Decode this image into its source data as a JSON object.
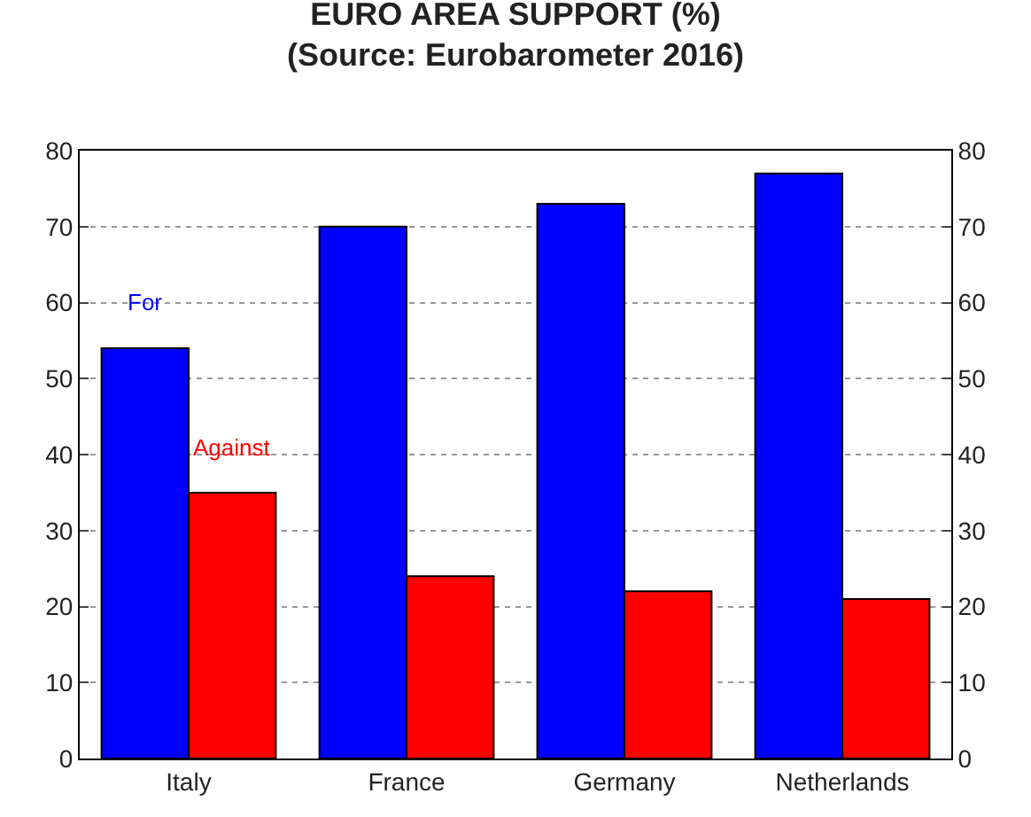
{
  "chart_data": {
    "type": "bar",
    "title": "EURO AREA SUPPORT (%)",
    "subtitle": "(Source: Eurobarometer 2016)",
    "categories": [
      "Italy",
      "France",
      "Germany",
      "Netherlands"
    ],
    "series": [
      {
        "name": "For",
        "color": "#0000ff",
        "values": [
          54,
          70,
          73,
          77
        ]
      },
      {
        "name": "Against",
        "color": "#ff0000",
        "values": [
          35,
          24,
          22,
          21
        ]
      }
    ],
    "ylim": [
      0,
      80
    ],
    "yticks": [
      0,
      10,
      20,
      30,
      40,
      50,
      60,
      70,
      80
    ],
    "y2lim": [
      0,
      80
    ],
    "y2ticks": [
      0,
      10,
      20,
      30,
      40,
      50,
      60,
      70,
      80
    ],
    "grid": "y",
    "legend": false
  }
}
